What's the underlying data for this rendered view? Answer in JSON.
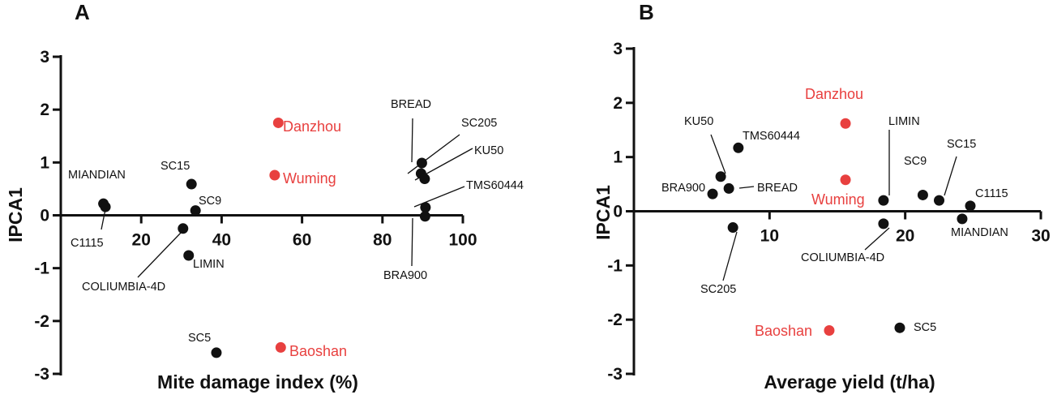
{
  "colors": {
    "genotype": "#111111",
    "location": "#e8403f"
  },
  "chart_data": [
    {
      "panel": "A",
      "type": "scatter",
      "xlabel": "Mite damage index (%)",
      "ylabel": "IPCA1",
      "xlim": [
        0,
        100
      ],
      "ylim": [
        -3,
        3
      ],
      "xticks": [
        20,
        40,
        60,
        80,
        100
      ],
      "yticks": [
        -3,
        -2,
        -1,
        0,
        1,
        2,
        3
      ],
      "grid": false,
      "genotypes": [
        {
          "name": "MIANDIAN",
          "x": 10.6,
          "y": 0.22
        },
        {
          "name": "C1115",
          "x": 11.1,
          "y": 0.16
        },
        {
          "name": "SC15",
          "x": 32.5,
          "y": 0.59
        },
        {
          "name": "SC9",
          "x": 33.5,
          "y": 0.09
        },
        {
          "name": "COLIUMBIA-4D",
          "x": 30.4,
          "y": -0.25
        },
        {
          "name": "LIMIN",
          "x": 31.8,
          "y": -0.76
        },
        {
          "name": "SC5",
          "x": 38.7,
          "y": -2.6
        },
        {
          "name": "BREAD",
          "x": 89.8,
          "y": 0.99
        },
        {
          "name": "SC205",
          "x": 89.6,
          "y": 0.79
        },
        {
          "name": "KU50",
          "x": 90.5,
          "y": 0.69
        },
        {
          "name": "TMS60444",
          "x": 90.7,
          "y": 0.15
        },
        {
          "name": "BRA900",
          "x": 90.6,
          "y": -0.02
        }
      ],
      "locations": [
        {
          "name": "Danzhou",
          "x": 54.1,
          "y": 1.75
        },
        {
          "name": "Wuming",
          "x": 53.2,
          "y": 0.76
        },
        {
          "name": "Baoshan",
          "x": 54.7,
          "y": -2.5
        }
      ]
    },
    {
      "panel": "B",
      "type": "scatter",
      "xlabel": "Average yield (t/ha)",
      "ylabel": "IPCA1",
      "xlim": [
        0,
        30
      ],
      "ylim": [
        -3,
        3
      ],
      "xticks": [
        10,
        20,
        30
      ],
      "yticks": [
        -3,
        -2,
        -1,
        0,
        1,
        2,
        3
      ],
      "grid": false,
      "genotypes": [
        {
          "name": "KU50",
          "x": 6.4,
          "y": 0.64
        },
        {
          "name": "TMS60444",
          "x": 7.7,
          "y": 1.17
        },
        {
          "name": "BRA900",
          "x": 5.8,
          "y": 0.32
        },
        {
          "name": "BREAD",
          "x": 7.0,
          "y": 0.42
        },
        {
          "name": "SC205",
          "x": 7.3,
          "y": -0.3
        },
        {
          "name": "LIMIN",
          "x": 18.4,
          "y": 0.2
        },
        {
          "name": "COLIUMBIA-4D",
          "x": 18.4,
          "y": -0.23
        },
        {
          "name": "SC9",
          "x": 21.3,
          "y": 0.3
        },
        {
          "name": "SC15",
          "x": 22.5,
          "y": 0.2
        },
        {
          "name": "C1115",
          "x": 24.8,
          "y": 0.1
        },
        {
          "name": "MIANDIAN",
          "x": 24.2,
          "y": -0.14
        },
        {
          "name": "SC5",
          "x": 19.6,
          "y": -2.15
        }
      ],
      "locations": [
        {
          "name": "Danzhou",
          "x": 15.6,
          "y": 1.62
        },
        {
          "name": "Wuming",
          "x": 15.6,
          "y": 0.58
        },
        {
          "name": "Baoshan",
          "x": 14.4,
          "y": -2.2
        }
      ]
    }
  ]
}
